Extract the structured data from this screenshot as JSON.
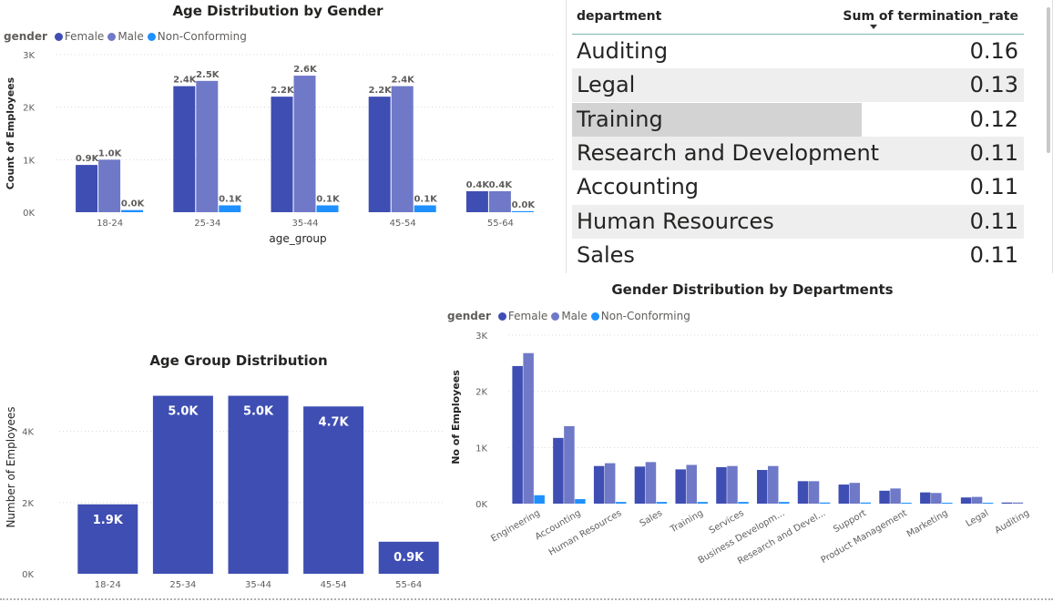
{
  "colors": {
    "female": "#3f4eb3",
    "male": "#6f79c8",
    "nonconf": "#1e90ff",
    "bar": "#3f4eb3"
  },
  "chart_data": [
    {
      "id": "age_gender",
      "type": "bar",
      "title": "Age Distribution by Gender",
      "legend_title": "gender",
      "xlabel": "age_group",
      "ylabel": "Count of Employees",
      "yticks": [
        "0K",
        "1K",
        "2K",
        "3K"
      ],
      "ylim": [
        0,
        3000
      ],
      "categories": [
        "18-24",
        "25-34",
        "35-44",
        "45-54",
        "55-64"
      ],
      "series": [
        {
          "name": "Female",
          "values": [
            900,
            2400,
            2200,
            2200,
            400
          ],
          "labels": [
            "0.9K",
            "2.4K",
            "2.2K",
            "2.2K",
            "0.4K"
          ]
        },
        {
          "name": "Male",
          "values": [
            1000,
            2500,
            2600,
            2400,
            400
          ],
          "labels": [
            "1.0K",
            "2.5K",
            "2.6K",
            "2.4K",
            "0.4K"
          ]
        },
        {
          "name": "Non-Conforming",
          "values": [
            40,
            130,
            130,
            130,
            20
          ],
          "labels": [
            "0.0K",
            "0.1K",
            "0.1K",
            "0.1K",
            "0.0K"
          ]
        }
      ]
    },
    {
      "id": "age_group",
      "type": "bar",
      "title": "Age Group Distribution",
      "xlabel": "",
      "ylabel": "Number of Employees",
      "yticks": [
        "0K",
        "2K",
        "4K"
      ],
      "ylim": [
        0,
        5500
      ],
      "categories": [
        "18-24",
        "25-34",
        "35-44",
        "45-54",
        "55-64"
      ],
      "values": [
        1950,
        5000,
        5000,
        4700,
        900
      ],
      "labels": [
        "1.9K",
        "5.0K",
        "5.0K",
        "4.7K",
        "0.9K"
      ]
    },
    {
      "id": "dept_gender",
      "type": "bar",
      "title": "Gender Distribution by Departments",
      "legend_title": "gender",
      "xlabel": "",
      "ylabel": "No of Employees",
      "yticks": [
        "0K",
        "1K",
        "2K",
        "3K"
      ],
      "ylim": [
        0,
        3000
      ],
      "categories": [
        "Engineering",
        "Accounting",
        "Human Resources",
        "Sales",
        "Training",
        "Services",
        "Business Developm...",
        "Research and Devel...",
        "Support",
        "Product Management",
        "Marketing",
        "Legal",
        "Auditing"
      ],
      "series": [
        {
          "name": "Female",
          "values": [
            2450,
            1170,
            670,
            660,
            610,
            650,
            600,
            400,
            340,
            230,
            200,
            110,
            20
          ]
        },
        {
          "name": "Male",
          "values": [
            2680,
            1380,
            720,
            740,
            690,
            670,
            670,
            400,
            370,
            270,
            190,
            120,
            20
          ]
        },
        {
          "name": "Non-Conforming",
          "values": [
            150,
            80,
            30,
            30,
            30,
            30,
            30,
            20,
            20,
            10,
            10,
            5,
            0
          ]
        }
      ]
    },
    {
      "id": "termination_table",
      "type": "table",
      "columns": [
        "department",
        "Sum of termination_rate"
      ],
      "rows": [
        [
          "Auditing",
          "0.16"
        ],
        [
          "Legal",
          "0.13"
        ],
        [
          "Training",
          "0.12"
        ],
        [
          "Research and Development",
          "0.11"
        ],
        [
          "Accounting",
          "0.11"
        ],
        [
          "Human Resources",
          "0.11"
        ],
        [
          "Sales",
          "0.11"
        ]
      ]
    }
  ]
}
